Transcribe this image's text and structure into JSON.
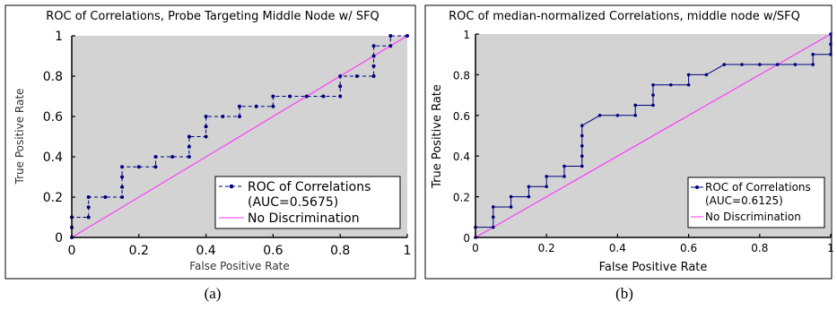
{
  "chart_data": [
    {
      "type": "line",
      "panel_caption": "(a)",
      "title": "ROC of Correlations, Probe Targeting Middle Node w/ SFQ",
      "xlabel": "False Positive Rate",
      "ylabel": "True Positive Rate",
      "xlim": [
        0,
        1
      ],
      "ylim": [
        0,
        1
      ],
      "xticks": [
        "0",
        "0.2",
        "0.4",
        "0.6",
        "0.8",
        "1"
      ],
      "yticks": [
        "0",
        "0.2",
        "0.4",
        "0.6",
        "0.8",
        "1"
      ],
      "grid": false,
      "legend_position": "bottom-right",
      "series": [
        {
          "name": "ROC of Correlations",
          "legend_extra": "(AUC=0.5675)",
          "color": "#000080",
          "style": "dashed-with-markers",
          "x": [
            0,
            0,
            0,
            0.05,
            0.05,
            0.05,
            0.1,
            0.15,
            0.15,
            0.15,
            0.15,
            0.2,
            0.25,
            0.25,
            0.3,
            0.35,
            0.35,
            0.35,
            0.4,
            0.4,
            0.4,
            0.45,
            0.5,
            0.5,
            0.55,
            0.6,
            0.6,
            0.65,
            0.7,
            0.75,
            0.8,
            0.8,
            0.8,
            0.85,
            0.9,
            0.9,
            0.9,
            0.9,
            0.95,
            0.95,
            1.0
          ],
          "y": [
            0,
            0.05,
            0.1,
            0.1,
            0.15,
            0.2,
            0.2,
            0.2,
            0.25,
            0.3,
            0.35,
            0.35,
            0.35,
            0.4,
            0.4,
            0.4,
            0.45,
            0.5,
            0.5,
            0.55,
            0.6,
            0.6,
            0.6,
            0.65,
            0.65,
            0.65,
            0.7,
            0.7,
            0.7,
            0.7,
            0.7,
            0.75,
            0.8,
            0.8,
            0.8,
            0.85,
            0.9,
            0.95,
            0.95,
            1.0,
            1.0
          ]
        },
        {
          "name": "No Discrimination",
          "color": "#ff33ff",
          "style": "solid",
          "x": [
            0,
            1
          ],
          "y": [
            0,
            1
          ]
        }
      ]
    },
    {
      "type": "line",
      "panel_caption": "(b)",
      "title": "ROC of median-normalized Correlations, middle node w/SFQ",
      "xlabel": "False Positive Rate",
      "ylabel": "True Positive Rate",
      "xlim": [
        0,
        1
      ],
      "ylim": [
        0,
        1
      ],
      "xticks": [
        "0",
        "0.2",
        "0.4",
        "0.6",
        "0.8",
        "1"
      ],
      "yticks": [
        "0",
        "0.2",
        "0.4",
        "0.6",
        "0.8",
        "1"
      ],
      "grid": false,
      "legend_position": "bottom-right",
      "series": [
        {
          "name": "ROC of Correlations",
          "legend_extra": "(AUC=0.6125)",
          "color": "#000080",
          "style": "step-with-markers",
          "x": [
            0,
            0,
            0.05,
            0.05,
            0.05,
            0.1,
            0.1,
            0.15,
            0.15,
            0.2,
            0.2,
            0.25,
            0.25,
            0.3,
            0.3,
            0.3,
            0.3,
            0.3,
            0.35,
            0.4,
            0.45,
            0.45,
            0.5,
            0.5,
            0.5,
            0.55,
            0.6,
            0.6,
            0.65,
            0.7,
            0.75,
            0.8,
            0.85,
            0.9,
            0.95,
            0.95,
            1.0,
            1.0,
            1.0
          ],
          "y": [
            0,
            0.05,
            0.05,
            0.1,
            0.15,
            0.15,
            0.2,
            0.2,
            0.25,
            0.25,
            0.3,
            0.3,
            0.35,
            0.35,
            0.4,
            0.45,
            0.5,
            0.55,
            0.6,
            0.6,
            0.6,
            0.65,
            0.65,
            0.7,
            0.75,
            0.75,
            0.75,
            0.8,
            0.8,
            0.85,
            0.85,
            0.85,
            0.85,
            0.85,
            0.85,
            0.9,
            0.9,
            0.95,
            1.0
          ]
        },
        {
          "name": "No Discrimination",
          "color": "#ff33ff",
          "style": "solid",
          "x": [
            0,
            1
          ],
          "y": [
            0,
            1
          ]
        }
      ]
    }
  ]
}
